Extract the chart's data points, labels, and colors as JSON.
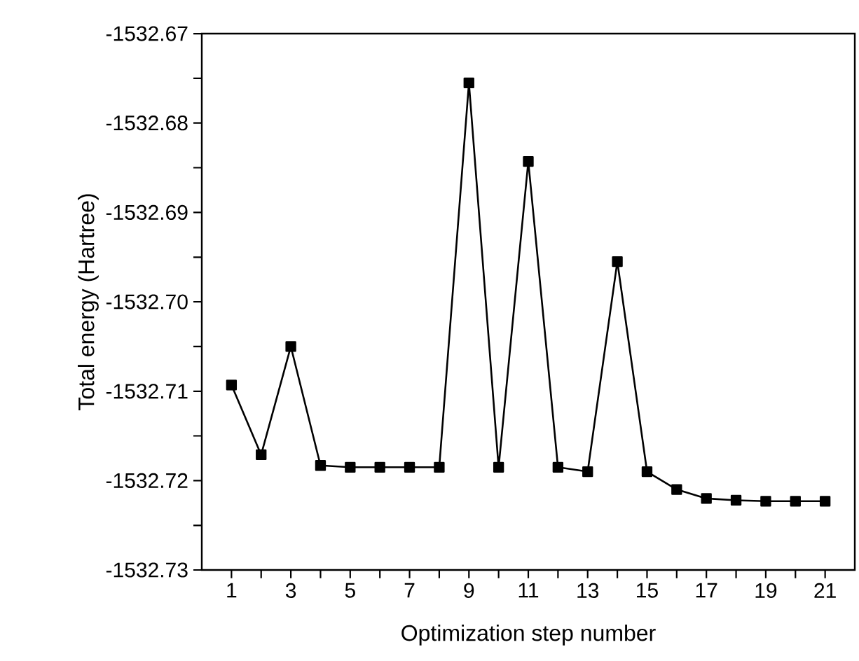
{
  "chart_data": {
    "type": "line",
    "xlabel": "Optimization step number",
    "ylabel": "Total energy (Hartree)",
    "x": [
      1,
      2,
      3,
      4,
      5,
      6,
      7,
      8,
      9,
      10,
      11,
      12,
      13,
      14,
      15,
      16,
      17,
      18,
      19,
      20,
      21
    ],
    "series": [
      {
        "color": "#000000",
        "values": [
          -1532.7093,
          -1532.7171,
          -1532.705,
          -1532.7183,
          -1532.7185,
          -1532.7185,
          -1532.7185,
          -1532.7185,
          -1532.6755,
          -1532.7185,
          -1532.6843,
          -1532.7185,
          -1532.719,
          -1532.6955,
          -1532.719,
          -1532.721,
          -1532.722,
          -1532.7222,
          -1532.7223,
          -1532.7223,
          -1532.7223
        ]
      }
    ],
    "xlim": [
      0,
      22
    ],
    "xticks": [
      1,
      {
        "value": 2,
        "label": null
      },
      3,
      {
        "value": 4,
        "label": null
      },
      5,
      {
        "value": 6,
        "label": null
      },
      7,
      {
        "value": 8,
        "label": null
      },
      9,
      {
        "value": 10,
        "label": null
      },
      11,
      {
        "value": 12,
        "label": null
      },
      13,
      {
        "value": 14,
        "label": null
      },
      15,
      {
        "value": 16,
        "label": null
      },
      17,
      {
        "value": 18,
        "label": null
      },
      19,
      {
        "value": 20,
        "label": null
      },
      21
    ],
    "ylim": [
      -1532.73,
      -1532.67
    ],
    "yticks": [
      {
        "value": -1532.73,
        "label": "-1532.73"
      },
      {
        "value": -1532.725,
        "label": null
      },
      {
        "value": -1532.72,
        "label": "-1532.72"
      },
      {
        "value": -1532.715,
        "label": null
      },
      {
        "value": -1532.71,
        "label": "-1532.71"
      },
      {
        "value": -1532.705,
        "label": null
      },
      {
        "value": -1532.7,
        "label": "-1532.70"
      },
      {
        "value": -1532.695,
        "label": null
      },
      {
        "value": -1532.69,
        "label": "-1532.69"
      },
      {
        "value": -1532.685,
        "label": null
      },
      {
        "value": -1532.68,
        "label": "-1532.68"
      },
      {
        "value": -1532.675,
        "label": null
      },
      {
        "value": -1532.67,
        "label": "-1532.67"
      }
    ],
    "marker": "square",
    "line_style": "solid"
  }
}
